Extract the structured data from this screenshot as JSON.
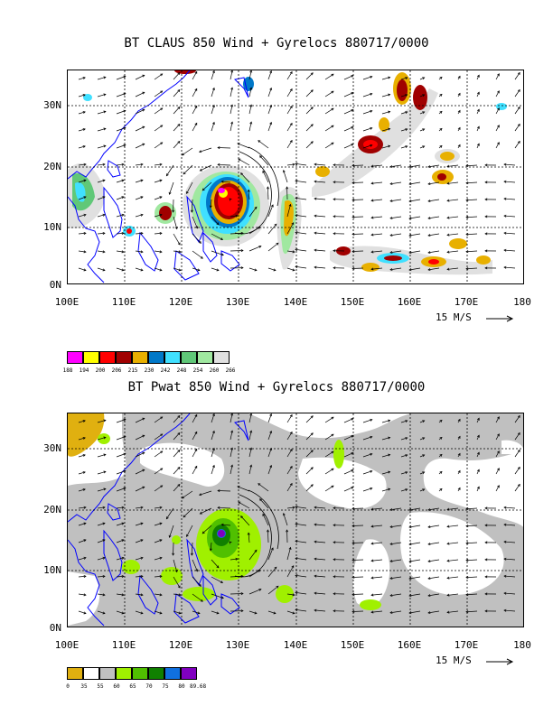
{
  "top_map": {
    "title": "BT CLAUS 850 Wind + Gyrelocs 880717/0000",
    "lat_labels": [
      "30N",
      "20N",
      "10N",
      "0N"
    ],
    "lon_labels": [
      "100E",
      "110E",
      "120E",
      "130E",
      "140E",
      "150E",
      "160E",
      "170E",
      "180"
    ],
    "wind_reference": "15 M/S",
    "legend": {
      "colors": [
        "#ff00ff",
        "#ffff00",
        "#ff0000",
        "#a00000",
        "#e8b000",
        "#0078c8",
        "#40e0ff",
        "#60c878",
        "#a0e8a0",
        "#e0e0e0"
      ],
      "labels": [
        "188",
        "194",
        "200",
        "206",
        "215",
        "230",
        "242",
        "248",
        "254",
        "260",
        "266"
      ]
    }
  },
  "bottom_map": {
    "title": "BT Pwat 850 Wind + Gyrelocs 880717/0000",
    "lat_labels": [
      "30N",
      "20N",
      "10N",
      "0N"
    ],
    "lon_labels": [
      "100E",
      "110E",
      "120E",
      "130E",
      "140E",
      "150E",
      "160E",
      "170E",
      "180"
    ],
    "wind_reference": "15 M/S",
    "legend": {
      "colors": [
        "#e0b010",
        "#ffffff",
        "#c0c0c0",
        "#a0f000",
        "#50c000",
        "#108000",
        "#1070e0",
        "#8000c0"
      ],
      "labels": [
        "0",
        "35",
        "55",
        "60",
        "65",
        "70",
        "75",
        "80",
        "89.68"
      ]
    }
  },
  "colors": {
    "coastline": "#0000ff",
    "grid": "#000000",
    "arrow": "#000000"
  }
}
